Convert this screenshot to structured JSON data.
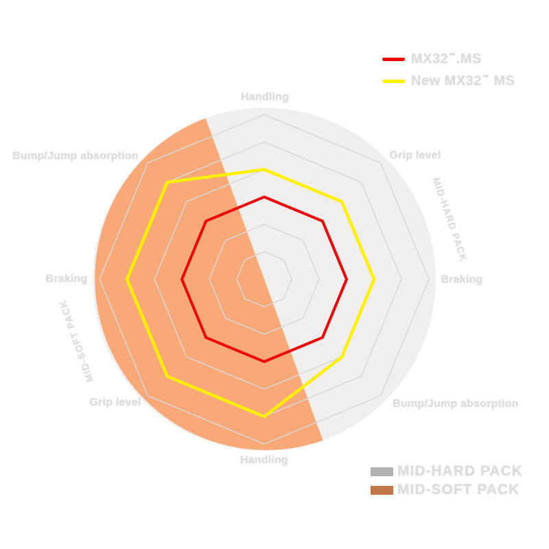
{
  "page": {
    "background": "#ffffff"
  },
  "legend_top": {
    "items": [
      {
        "pre": "MX32",
        "tm": "™",
        "post": ".MS",
        "color": "#ee0505"
      },
      {
        "pre": "New MX32",
        "tm": "™",
        "post": " MS",
        "color": "#fdf005"
      }
    ]
  },
  "legend_bottom": {
    "items": [
      {
        "label": "MID-HARD PACK",
        "color": "#b2b2b2"
      },
      {
        "label": "MID-SOFT PACK",
        "color": "#c1774a"
      }
    ]
  },
  "chart_data": {
    "type": "radar",
    "axes": [
      "Handling",
      "Grip level",
      "Braking",
      "Bump/Jump absorption",
      "Handling",
      "Grip level",
      "Braking",
      "Bump/Jump absorption"
    ],
    "levels": 6,
    "value_max": 6,
    "grid_color": "#d8d8d8",
    "grid_shape": "octagon",
    "legend_position": "top-right",
    "series": [
      {
        "name": "MX32™ MS",
        "color": "#ee0505",
        "values": [
          3,
          3,
          3,
          3,
          3,
          3,
          3,
          3
        ]
      },
      {
        "name": "New MX32™ MS",
        "color": "#fdf005",
        "values": [
          4,
          4,
          4,
          4,
          5,
          5,
          5,
          5
        ]
      }
    ],
    "zones": [
      {
        "name": "MID-HARD PACK",
        "side": "right",
        "color": "#f0efed"
      },
      {
        "name": "MID-SOFT PACK",
        "side": "left",
        "color": "#f9a878"
      }
    ]
  }
}
